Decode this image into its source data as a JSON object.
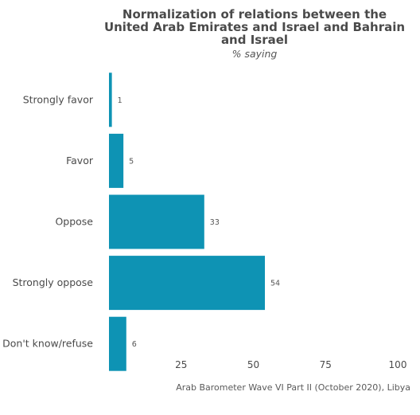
{
  "chart_data": {
    "type": "bar",
    "orientation": "horizontal",
    "title": "Normalization of relations between the United Arab Emirates and Israel and Bahrain and Israel",
    "subtitle": "% saying",
    "categories": [
      "Strongly favor",
      "Favor",
      "Oppose",
      "Strongly oppose",
      "Don't know/refuse"
    ],
    "values": [
      1,
      5,
      33,
      54,
      6
    ],
    "data_labels": [
      "1",
      "5",
      "33",
      "54",
      "6"
    ],
    "xticks": [
      25,
      50,
      75,
      100
    ],
    "xlim": [
      0,
      100
    ],
    "grid": false,
    "bar_color": "#0e93b4",
    "caption": "Arab Barometer Wave VI Part II (October 2020), Libya"
  }
}
